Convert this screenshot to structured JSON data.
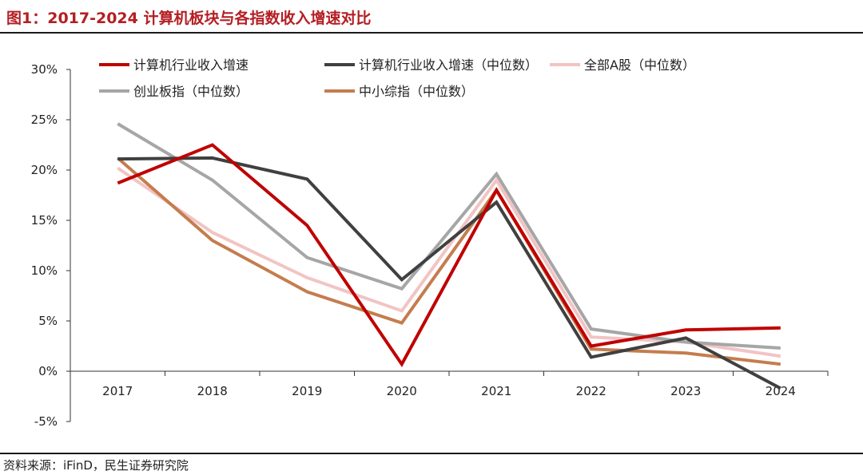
{
  "title": "图1：2017-2024 计算机板块与各指数收入增速对比",
  "source": "资料来源：iFinD，民生证券研究院",
  "chart_data": {
    "type": "line",
    "title": "图1：2017-2024 计算机板块与各指数收入增速对比",
    "xlabel": "",
    "ylabel": "",
    "categories": [
      "2017",
      "2018",
      "2019",
      "2020",
      "2021",
      "2022",
      "2023",
      "2024"
    ],
    "ylim": [
      -5,
      30
    ],
    "yticks": [
      30,
      25,
      20,
      15,
      10,
      5,
      0,
      -5
    ],
    "ytick_labels": [
      "30%",
      "25%",
      "20%",
      "15%",
      "10%",
      "5%",
      "0%",
      "-5%"
    ],
    "grid": false,
    "legend_position": "top",
    "series": [
      {
        "name": "计算机行业收入增速",
        "color": "#c00000",
        "values": [
          18.7,
          22.5,
          14.5,
          0.7,
          18.0,
          2.5,
          4.1,
          4.3
        ]
      },
      {
        "name": "计算机行业收入增速（中位数）",
        "color": "#404040",
        "values": [
          21.1,
          21.2,
          19.1,
          9.1,
          16.8,
          1.4,
          3.3,
          -1.7
        ]
      },
      {
        "name": "全部A股（中位数）",
        "color": "#f2c4c4",
        "values": [
          20.2,
          13.8,
          9.3,
          6.0,
          19.0,
          3.4,
          2.9,
          1.5
        ]
      },
      {
        "name": "创业板指（中位数）",
        "color": "#a6a6a6",
        "values": [
          24.6,
          19.0,
          11.3,
          8.2,
          19.6,
          4.2,
          2.9,
          2.3
        ]
      },
      {
        "name": "中小综指（中位数）",
        "color": "#c47d4e",
        "values": [
          21.2,
          13.0,
          7.9,
          4.8,
          18.0,
          2.2,
          1.8,
          0.7
        ]
      }
    ]
  }
}
